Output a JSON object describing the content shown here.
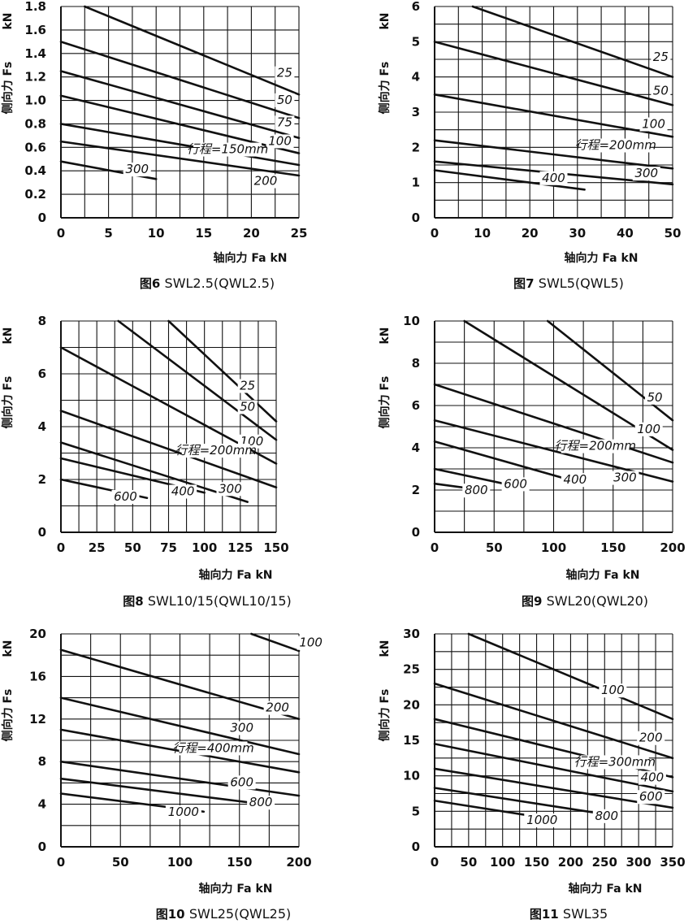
{
  "colors": {
    "ink": "#111111",
    "paper": "#ffffff"
  },
  "chart_data": [
    {
      "type": "line",
      "figure_label": "图6",
      "title": "SWL2.5(QWL2.5)",
      "xlabel": "轴向力 Fa   kN",
      "ylabel": "侧向力 Fs",
      "yunit": "kN",
      "xlim": [
        0,
        25
      ],
      "ylim": [
        0,
        1.8
      ],
      "xticks": [
        0,
        5,
        10,
        15,
        20,
        25
      ],
      "xticks_text": [
        "0",
        "5",
        "10",
        "15",
        "20",
        "25"
      ],
      "yticks": [
        0,
        0.2,
        0.4,
        0.6,
        0.8,
        1.0,
        1.2,
        1.4,
        1.6,
        1.8
      ],
      "yticks_text": [
        "0",
        "0.2",
        "0.4",
        "0.6",
        "0.8",
        "1.0",
        "1.2",
        "1.4",
        "1.6",
        "1.8"
      ],
      "grid_x": [
        0,
        2.5,
        5,
        7.5,
        10,
        12.5,
        15,
        17.5,
        20,
        22.5,
        25
      ],
      "grid_y": [
        0,
        0.2,
        0.4,
        0.6,
        0.8,
        1.0,
        1.2,
        1.4,
        1.6,
        1.8
      ],
      "grid": true,
      "series": [
        {
          "name": "25",
          "x": [
            2.5,
            25
          ],
          "y": [
            1.8,
            1.05
          ]
        },
        {
          "name": "50",
          "x": [
            0,
            25
          ],
          "y": [
            1.5,
            0.85
          ]
        },
        {
          "name": "75",
          "x": [
            0,
            25
          ],
          "y": [
            1.25,
            0.68
          ]
        },
        {
          "name": "100",
          "x": [
            0,
            25
          ],
          "y": [
            1.04,
            0.55
          ]
        },
        {
          "name": "行程=150mm",
          "x": [
            0,
            25
          ],
          "y": [
            0.8,
            0.45
          ]
        },
        {
          "name": "200",
          "x": [
            0,
            25
          ],
          "y": [
            0.65,
            0.36
          ]
        },
        {
          "name": "300",
          "x": [
            0,
            10
          ],
          "y": [
            0.48,
            0.33
          ]
        }
      ],
      "annotations": [
        {
          "text": "25",
          "x": 23.5,
          "y": 1.2
        },
        {
          "text": "50",
          "x": 23.5,
          "y": 0.97
        },
        {
          "text": "75",
          "x": 23.5,
          "y": 0.78
        },
        {
          "text": "100",
          "x": 23.0,
          "y": 0.62
        },
        {
          "text": "行程=150mm",
          "x": 17.5,
          "y": 0.55
        },
        {
          "text": "200",
          "x": 21.5,
          "y": 0.28
        },
        {
          "text": "300",
          "x": 8.0,
          "y": 0.38
        }
      ]
    },
    {
      "type": "line",
      "figure_label": "图7",
      "title": "SWL5(QWL5)",
      "xlabel": "轴向力 Fa   kN",
      "ylabel": "侧向力 Fs",
      "yunit": "kN",
      "xlim": [
        0,
        50
      ],
      "ylim": [
        0,
        6
      ],
      "xticks": [
        0,
        10,
        20,
        30,
        40,
        50
      ],
      "xticks_text": [
        "0",
        "10",
        "20",
        "30",
        "40",
        "50"
      ],
      "yticks": [
        0,
        1,
        2,
        3,
        4,
        5,
        6
      ],
      "yticks_text": [
        "0",
        "1",
        "2",
        "3",
        "4",
        "5",
        "6"
      ],
      "grid_x": [
        0,
        5,
        10,
        15,
        20,
        25,
        30,
        35,
        40,
        45,
        50
      ],
      "grid_y": [
        0,
        0.5,
        1,
        1.5,
        2,
        2.5,
        3,
        3.5,
        4,
        4.5,
        5,
        5.5,
        6
      ],
      "grid": true,
      "series": [
        {
          "name": "25",
          "x": [
            8,
            50
          ],
          "y": [
            6,
            4.0
          ]
        },
        {
          "name": "50",
          "x": [
            0,
            50
          ],
          "y": [
            5.0,
            3.2
          ]
        },
        {
          "name": "100",
          "x": [
            0,
            50
          ],
          "y": [
            3.5,
            2.3
          ]
        },
        {
          "name": "行程=200mm",
          "x": [
            0,
            50
          ],
          "y": [
            2.2,
            1.4
          ]
        },
        {
          "name": "300",
          "x": [
            0,
            50
          ],
          "y": [
            1.6,
            0.95
          ]
        },
        {
          "name": "400",
          "x": [
            0,
            31.5
          ],
          "y": [
            1.35,
            0.8
          ]
        }
      ],
      "annotations": [
        {
          "text": "25",
          "x": 47.5,
          "y": 4.45
        },
        {
          "text": "50",
          "x": 47.5,
          "y": 3.5
        },
        {
          "text": "100",
          "x": 46.0,
          "y": 2.55
        },
        {
          "text": "行程=200mm",
          "x": 38.0,
          "y": 1.95
        },
        {
          "text": "300",
          "x": 44.5,
          "y": 1.15
        },
        {
          "text": "400",
          "x": 25.0,
          "y": 1.02
        }
      ]
    },
    {
      "type": "line",
      "figure_label": "图8",
      "title": "SWL10/15(QWL10/15)",
      "xlabel": "轴向力 Fa   kN",
      "ylabel": "侧向力 Fs",
      "yunit": "kN",
      "xlim": [
        0,
        150
      ],
      "ylim": [
        0,
        8
      ],
      "xticks": [
        0,
        25,
        50,
        75,
        100,
        125,
        150
      ],
      "xticks_text": [
        "0",
        "25",
        "50",
        "75",
        "100",
        "125",
        "150"
      ],
      "yticks": [
        0,
        2,
        4,
        6,
        8
      ],
      "yticks_text": [
        "0",
        "2",
        "4",
        "6",
        "8"
      ],
      "grid_x": [
        0,
        12.5,
        25,
        37.5,
        50,
        62.5,
        75,
        87.5,
        100,
        112.5,
        125,
        137.5,
        150
      ],
      "grid_y": [
        0,
        1,
        2,
        3,
        4,
        5,
        6,
        7,
        8
      ],
      "grid": true,
      "series": [
        {
          "name": "25",
          "x": [
            75,
            150
          ],
          "y": [
            8.0,
            4.2
          ]
        },
        {
          "name": "50",
          "x": [
            40,
            150
          ],
          "y": [
            8.0,
            3.5
          ]
        },
        {
          "name": "100",
          "x": [
            0,
            150
          ],
          "y": [
            7.0,
            2.6
          ]
        },
        {
          "name": "行程=200mm",
          "x": [
            0,
            150
          ],
          "y": [
            4.6,
            1.7
          ]
        },
        {
          "name": "300",
          "x": [
            0,
            130
          ],
          "y": [
            3.4,
            1.15
          ]
        },
        {
          "name": "400",
          "x": [
            0,
            100
          ],
          "y": [
            2.8,
            1.5
          ]
        },
        {
          "name": "600",
          "x": [
            0,
            60
          ],
          "y": [
            2.0,
            1.3
          ]
        }
      ],
      "annotations": [
        {
          "text": "25",
          "x": 130.0,
          "y": 5.4
        },
        {
          "text": "50",
          "x": 130.0,
          "y": 4.6
        },
        {
          "text": "100",
          "x": 133.0,
          "y": 3.3
        },
        {
          "text": "行程=200mm",
          "x": 108.0,
          "y": 2.95
        },
        {
          "text": "300",
          "x": 118.0,
          "y": 1.5
        },
        {
          "text": "400",
          "x": 85.0,
          "y": 1.4
        },
        {
          "text": "600",
          "x": 45.0,
          "y": 1.2
        }
      ]
    },
    {
      "type": "line",
      "figure_label": "图9",
      "title": "SWL20(QWL20)",
      "xlabel": "轴向力 Fa   kN",
      "ylabel": "侧向力 Fs",
      "yunit": "kN",
      "xlim": [
        0,
        200
      ],
      "ylim": [
        0,
        10
      ],
      "xticks": [
        0,
        50,
        100,
        150,
        200
      ],
      "xticks_text": [
        "0",
        "50",
        "100",
        "150",
        "200"
      ],
      "yticks": [
        0,
        2,
        4,
        6,
        8,
        10
      ],
      "yticks_text": [
        "0",
        "2",
        "4",
        "6",
        "8",
        "10"
      ],
      "grid_x": [
        0,
        25,
        50,
        75,
        100,
        125,
        150,
        175,
        200
      ],
      "grid_y": [
        0,
        1,
        2,
        3,
        4,
        5,
        6,
        7,
        8,
        9,
        10
      ],
      "grid": true,
      "series": [
        {
          "name": "50",
          "x": [
            95,
            200
          ],
          "y": [
            10,
            5.3
          ]
        },
        {
          "name": "100",
          "x": [
            25,
            200
          ],
          "y": [
            10,
            3.9
          ]
        },
        {
          "name": "行程=200mm",
          "x": [
            0,
            200
          ],
          "y": [
            7.0,
            3.3
          ]
        },
        {
          "name": "300",
          "x": [
            0,
            200
          ],
          "y": [
            5.3,
            2.4
          ]
        },
        {
          "name": "400",
          "x": [
            0,
            125
          ],
          "y": [
            4.3,
            2.3
          ]
        },
        {
          "name": "600",
          "x": [
            0,
            75
          ],
          "y": [
            3.0,
            2.1
          ]
        },
        {
          "name": "800",
          "x": [
            0,
            40
          ],
          "y": [
            2.3,
            2.0
          ]
        }
      ],
      "annotations": [
        {
          "text": "50",
          "x": 185.0,
          "y": 6.2
        },
        {
          "text": "100",
          "x": 180.0,
          "y": 4.7
        },
        {
          "text": "行程=200mm",
          "x": 135.0,
          "y": 3.9
        },
        {
          "text": "300",
          "x": 160.0,
          "y": 2.4
        },
        {
          "text": "400",
          "x": 118.0,
          "y": 2.3
        },
        {
          "text": "600",
          "x": 68.0,
          "y": 2.1
        },
        {
          "text": "800",
          "x": 35.0,
          "y": 1.8
        }
      ]
    },
    {
      "type": "line",
      "figure_label": "图10",
      "title": "SWL25(QWL25)",
      "xlabel": "轴向力 Fa   kN",
      "ylabel": "侧向力 Fs",
      "yunit": "kN",
      "xlim": [
        0,
        200
      ],
      "ylim": [
        0,
        20
      ],
      "xticks": [
        0,
        50,
        100,
        150,
        200
      ],
      "xticks_text": [
        "0",
        "50",
        "100",
        "150",
        "200"
      ],
      "yticks": [
        0,
        4,
        8,
        12,
        16,
        20
      ],
      "yticks_text": [
        "0",
        "4",
        "8",
        "12",
        "16",
        "20"
      ],
      "grid_x": [
        0,
        25,
        50,
        75,
        100,
        125,
        150,
        175,
        200
      ],
      "grid_y": [
        0,
        2,
        4,
        6,
        8,
        10,
        12,
        14,
        16,
        18,
        20
      ],
      "grid": true,
      "series": [
        {
          "name": "100",
          "x": [
            160,
            200
          ],
          "y": [
            20,
            18.4
          ]
        },
        {
          "name": "200",
          "x": [
            0,
            200
          ],
          "y": [
            18.5,
            12.0
          ]
        },
        {
          "name": "300",
          "x": [
            0,
            200
          ],
          "y": [
            14.0,
            8.7
          ]
        },
        {
          "name": "行程=400mm",
          "x": [
            0,
            200
          ],
          "y": [
            11.0,
            7.0
          ]
        },
        {
          "name": "600",
          "x": [
            0,
            200
          ],
          "y": [
            8.0,
            4.8
          ]
        },
        {
          "name": "800",
          "x": [
            0,
            170
          ],
          "y": [
            6.4,
            4.0
          ]
        },
        {
          "name": "1000",
          "x": [
            0,
            120
          ],
          "y": [
            5.0,
            3.3
          ]
        }
      ],
      "annotations": [
        {
          "text": "100",
          "x": 210.0,
          "y": 18.8
        },
        {
          "text": "200",
          "x": 182.0,
          "y": 12.7
        },
        {
          "text": "300",
          "x": 152.0,
          "y": 10.8
        },
        {
          "text": "行程=400mm",
          "x": 128.0,
          "y": 8.9
        },
        {
          "text": "600",
          "x": 152.0,
          "y": 5.7
        },
        {
          "text": "800",
          "x": 168.0,
          "y": 3.8
        },
        {
          "text": "1000",
          "x": 103.0,
          "y": 2.9
        }
      ]
    },
    {
      "type": "line",
      "figure_label": "图11",
      "title": "SWL35",
      "xlabel": "轴向力 Fa   kN",
      "ylabel": "侧向力 Fs",
      "yunit": "kN",
      "xlim": [
        0,
        350
      ],
      "ylim": [
        0,
        30
      ],
      "xticks": [
        0,
        50,
        100,
        150,
        200,
        250,
        300,
        350
      ],
      "xticks_text": [
        "0",
        "50",
        "100",
        "150",
        "200",
        "250",
        "300",
        "350"
      ],
      "yticks": [
        0,
        5,
        10,
        15,
        20,
        25,
        30
      ],
      "yticks_text": [
        "0",
        "5",
        "10",
        "15",
        "20",
        "25",
        "30"
      ],
      "grid_x": [
        0,
        25,
        50,
        75,
        100,
        125,
        150,
        175,
        200,
        225,
        250,
        275,
        300,
        325,
        350
      ],
      "grid_y": [
        0,
        2.5,
        5,
        7.5,
        10,
        12.5,
        15,
        17.5,
        20,
        22.5,
        25,
        27.5,
        30
      ],
      "grid": true,
      "series": [
        {
          "name": "100",
          "x": [
            50,
            350
          ],
          "y": [
            30,
            18.0
          ]
        },
        {
          "name": "200",
          "x": [
            0,
            350
          ],
          "y": [
            23.0,
            12.5
          ]
        },
        {
          "name": "行程=300mm",
          "x": [
            0,
            350
          ],
          "y": [
            18.0,
            9.8
          ]
        },
        {
          "name": "400",
          "x": [
            0,
            350
          ],
          "y": [
            14.5,
            7.8
          ]
        },
        {
          "name": "600",
          "x": [
            0,
            350
          ],
          "y": [
            11.0,
            5.5
          ]
        },
        {
          "name": "800",
          "x": [
            0,
            250
          ],
          "y": [
            8.3,
            4.6
          ]
        },
        {
          "name": "1000",
          "x": [
            0,
            160
          ],
          "y": [
            6.5,
            4.1
          ]
        }
      ],
      "annotations": [
        {
          "text": "100",
          "x": 262.0,
          "y": 21.5
        },
        {
          "text": "200",
          "x": 318.0,
          "y": 14.8
        },
        {
          "text": "行程=300mm",
          "x": 265.0,
          "y": 11.4
        },
        {
          "text": "400",
          "x": 320.0,
          "y": 9.2
        },
        {
          "text": "600",
          "x": 318.0,
          "y": 6.5
        },
        {
          "text": "800",
          "x": 253.0,
          "y": 3.8
        },
        {
          "text": "1000",
          "x": 158.0,
          "y": 3.2
        }
      ]
    }
  ]
}
